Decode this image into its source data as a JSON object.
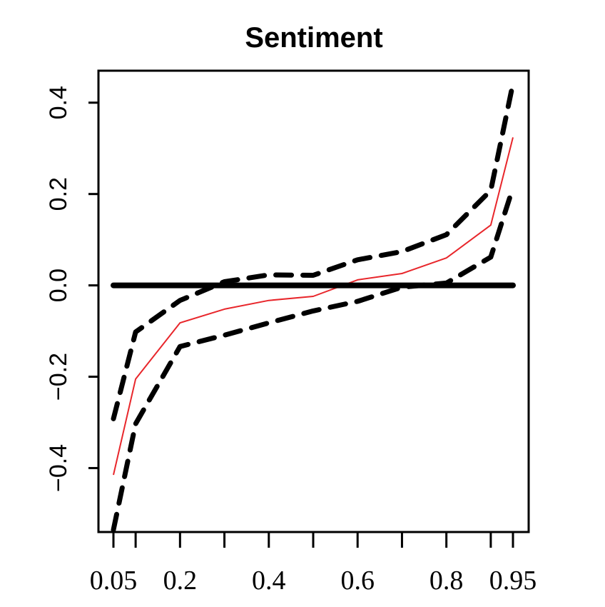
{
  "chart_data": {
    "type": "line",
    "title": "Sentiment",
    "xlabel": "",
    "ylabel": "",
    "x": [
      0.05,
      0.1,
      0.2,
      0.3,
      0.4,
      0.5,
      0.6,
      0.7,
      0.8,
      0.9,
      0.95
    ],
    "x_tick_positions": [
      0.05,
      0.1,
      0.2,
      0.3,
      0.4,
      0.5,
      0.6,
      0.7,
      0.8,
      0.9,
      0.95
    ],
    "x_tick_labels": [
      "0.05",
      "0.2",
      "0.4",
      "0.6",
      "0.8",
      "0.95"
    ],
    "x_tick_label_values": [
      0.05,
      0.2,
      0.4,
      0.6,
      0.8,
      0.95
    ],
    "y_ticks": [
      -0.4,
      -0.2,
      0.0,
      0.2,
      0.4
    ],
    "y_tick_labels": [
      "−0.4",
      "−0.2",
      "0.0",
      "0.2",
      "0.4"
    ],
    "ylim": [
      -0.54,
      0.47
    ],
    "grid": false,
    "series": [
      {
        "role": "estimate",
        "color": "#e8262b",
        "style": "solid",
        "values": [
          -0.415,
          -0.205,
          -0.082,
          -0.052,
          -0.033,
          -0.024,
          0.012,
          0.026,
          0.06,
          0.132,
          0.324
        ]
      },
      {
        "role": "upper-bound",
        "color": "#000000",
        "style": "dashed",
        "values": [
          -0.292,
          -0.102,
          -0.033,
          0.008,
          0.023,
          0.022,
          0.056,
          0.074,
          0.111,
          0.208,
          0.442
        ]
      },
      {
        "role": "lower-bound",
        "color": "#000000",
        "style": "dashed",
        "values": [
          -0.535,
          -0.303,
          -0.134,
          -0.109,
          -0.082,
          -0.056,
          -0.035,
          -0.004,
          0.005,
          0.062,
          0.214
        ]
      },
      {
        "role": "zero-reference",
        "color": "#000000",
        "style": "thick-solid",
        "values": [
          0,
          0,
          0,
          0,
          0,
          0,
          0,
          0,
          0,
          0,
          0
        ]
      }
    ]
  }
}
